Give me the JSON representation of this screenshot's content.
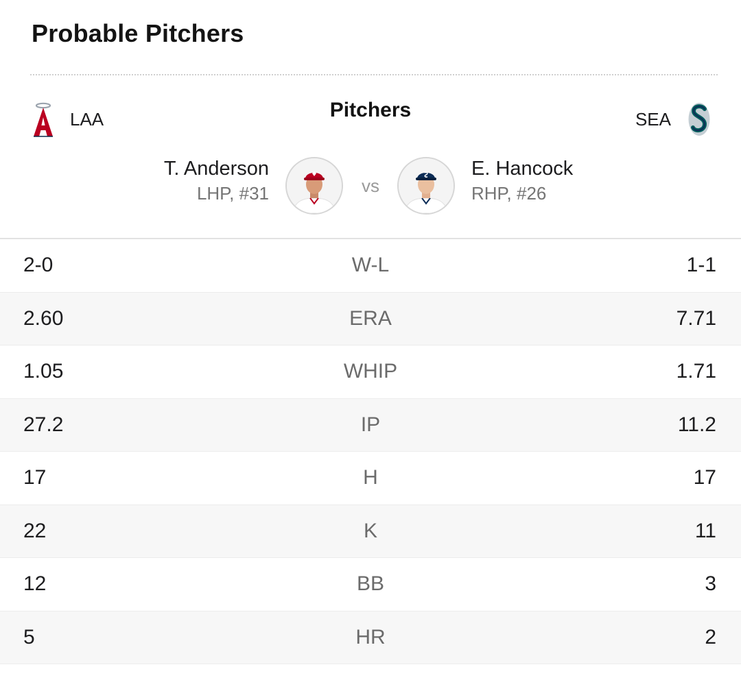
{
  "card": {
    "title": "Probable Pitchers"
  },
  "header": {
    "section_label": "Pitchers",
    "away_team": {
      "abbr": "LAA",
      "logo_icon": "angels-logo-icon",
      "color": "#BA0021"
    },
    "home_team": {
      "abbr": "SEA",
      "logo_icon": "mariners-logo-icon",
      "color": "#005C5C"
    }
  },
  "matchup": {
    "vs_label": "vs",
    "away_pitcher": {
      "name": "T. Anderson",
      "meta": "LHP, #31",
      "cap_color": "#BA0021"
    },
    "home_pitcher": {
      "name": "E. Hancock",
      "meta": "RHP, #26",
      "cap_color": "#0C2C56"
    }
  },
  "stats": [
    {
      "label": "W-L",
      "away": "2-0",
      "home": "1-1"
    },
    {
      "label": "ERA",
      "away": "2.60",
      "home": "7.71"
    },
    {
      "label": "WHIP",
      "away": "1.05",
      "home": "1.71"
    },
    {
      "label": "IP",
      "away": "27.2",
      "home": "11.2"
    },
    {
      "label": "H",
      "away": "17",
      "home": "17"
    },
    {
      "label": "K",
      "away": "22",
      "home": "11"
    },
    {
      "label": "BB",
      "away": "12",
      "home": "3"
    },
    {
      "label": "HR",
      "away": "5",
      "home": "2"
    }
  ]
}
